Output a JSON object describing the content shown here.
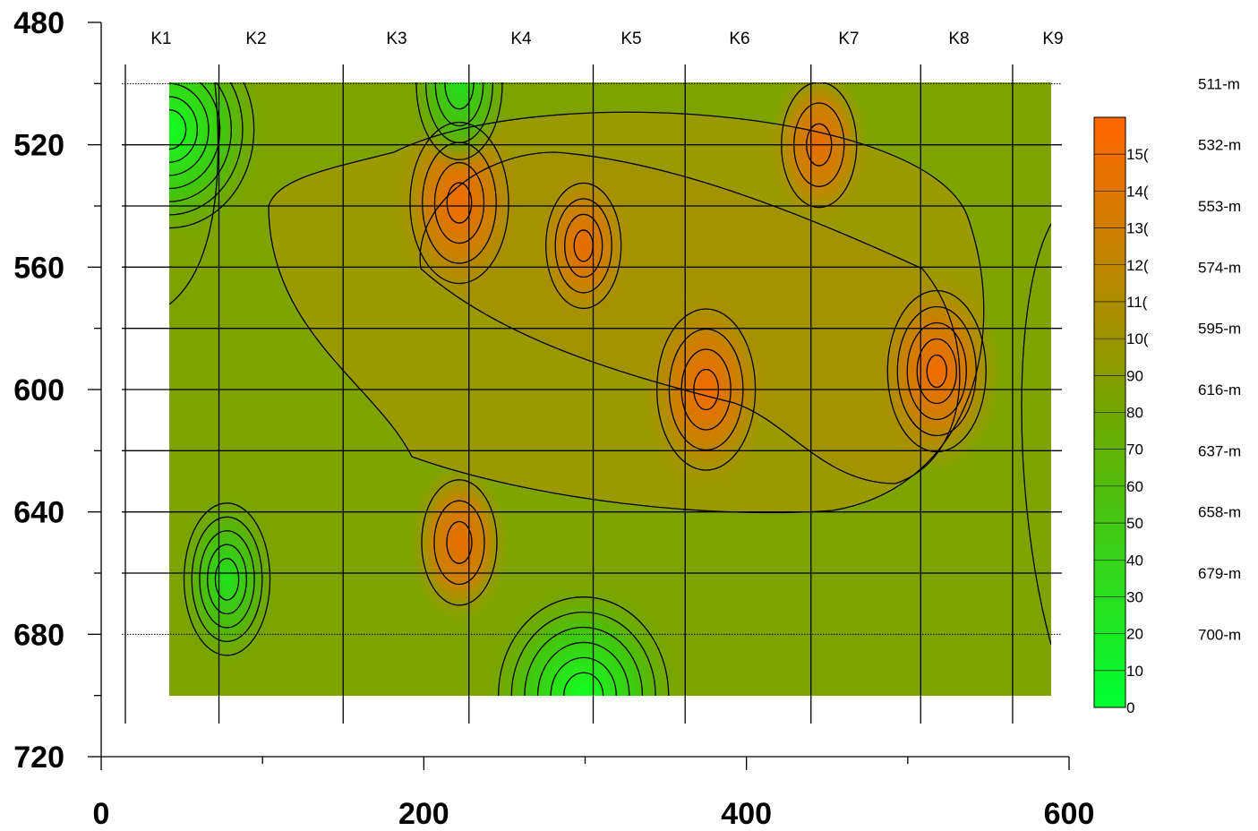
{
  "chart_data": {
    "type": "heatmap",
    "title": "",
    "xlabel": "",
    "ylabel": "",
    "xlim": [
      0,
      600
    ],
    "ylim": [
      720,
      480
    ],
    "x_ticks": [
      0,
      200,
      400,
      600
    ],
    "y_ticks": [
      480,
      520,
      560,
      600,
      640,
      680,
      720
    ],
    "grid": true,
    "profiles": [
      {
        "label": "K1",
        "x": 15
      },
      {
        "label": "K2",
        "x": 73
      },
      {
        "label": "K3",
        "x": 150
      },
      {
        "label": "K4",
        "x": 228
      },
      {
        "label": "K5",
        "x": 305
      },
      {
        "label": "K6",
        "x": 362
      },
      {
        "label": "K7",
        "x": 440
      },
      {
        "label": "K8",
        "x": 508
      },
      {
        "label": "K9",
        "x": 565
      }
    ],
    "depth_labels": [
      {
        "label": "511-m",
        "y": 500
      },
      {
        "label": "532-m",
        "y": 520
      },
      {
        "label": "553-m",
        "y": 540
      },
      {
        "label": "574-m",
        "y": 560
      },
      {
        "label": "595-m",
        "y": 580
      },
      {
        "label": "616-m",
        "y": 600
      },
      {
        "label": "637-m",
        "y": 620
      },
      {
        "label": "658-m",
        "y": 640
      },
      {
        "label": "679-m",
        "y": 660
      },
      {
        "label": "700-m",
        "y": 680
      }
    ],
    "grid_lines_y": [
      500,
      520,
      540,
      560,
      580,
      600,
      620,
      640,
      660,
      680
    ],
    "data_extent": {
      "x": [
        42,
        588
      ],
      "y": [
        500,
        700
      ]
    },
    "colorbar": {
      "label_values": [
        "0",
        "10",
        "20",
        "30",
        "40",
        "50",
        "60",
        "70",
        "80",
        "90",
        "100",
        "110",
        "120",
        "130",
        "140",
        "150"
      ],
      "labels_display": [
        "0",
        "10",
        "20",
        "30",
        "40",
        "50",
        "60",
        "70",
        "80",
        "90",
        "10(",
        "11(",
        "12(",
        "13(",
        "14(",
        "15("
      ],
      "min": 0,
      "max": 160,
      "low_color": "#00ff33",
      "mid_color": "#9a9a00",
      "high_color": "#ff6600"
    },
    "anomalies_high": [
      {
        "x": 222,
        "y": 539,
        "value": 130,
        "profile": "K4"
      },
      {
        "x": 299,
        "y": 553,
        "value": 125,
        "profile": "K5"
      },
      {
        "x": 375,
        "y": 600,
        "value": 130,
        "profile": "K6"
      },
      {
        "x": 445,
        "y": 520,
        "value": 120,
        "profile": "K7"
      },
      {
        "x": 518,
        "y": 594,
        "value": 135,
        "profile": "K8"
      },
      {
        "x": 222,
        "y": 650,
        "value": 112,
        "profile": "K4"
      }
    ],
    "anomalies_low": [
      {
        "x": 42,
        "y": 515,
        "value": 10,
        "profile": "K1"
      },
      {
        "x": 78,
        "y": 662,
        "value": 35,
        "profile": "K2"
      },
      {
        "x": 299,
        "y": 700,
        "value": 20,
        "profile": "K5"
      },
      {
        "x": 222,
        "y": 500,
        "value": 45,
        "profile": "K4"
      }
    ]
  }
}
